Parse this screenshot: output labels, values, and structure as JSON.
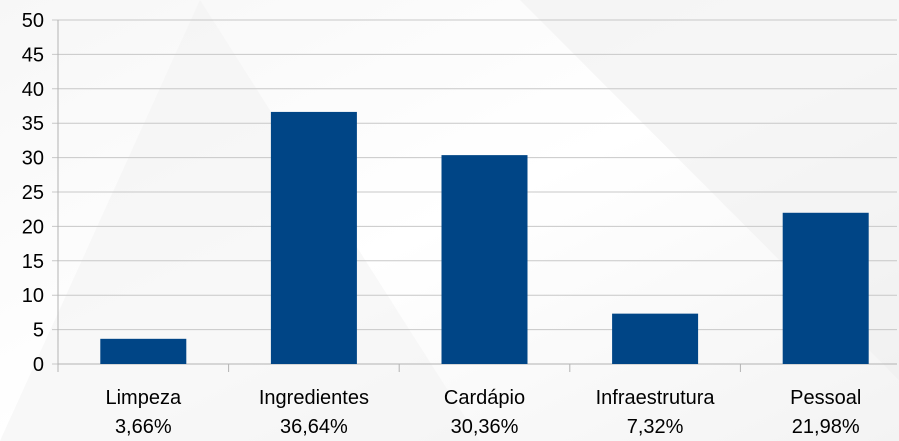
{
  "chart_data": {
    "type": "bar",
    "categories": [
      "Limpeza",
      "Ingredientes",
      "Cardápio",
      "Infraestrutura",
      "Pessoal"
    ],
    "values": [
      3.66,
      36.64,
      30.36,
      7.32,
      21.98
    ],
    "value_labels": [
      "3,66%",
      "36,64%",
      "30,36%",
      "7,32%",
      "21,98%"
    ],
    "color": "#004586",
    "ylim": [
      0,
      50
    ],
    "yticks": [
      0,
      5,
      10,
      15,
      20,
      25,
      30,
      35,
      40,
      45,
      50
    ],
    "grid": true
  }
}
